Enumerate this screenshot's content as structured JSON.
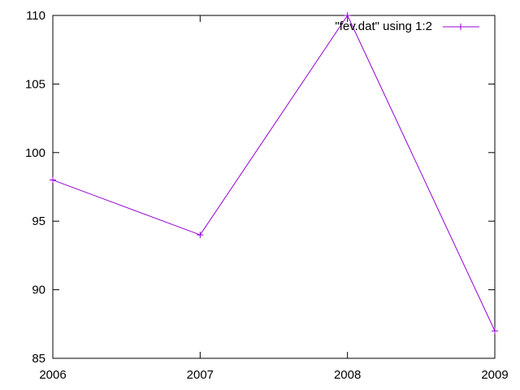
{
  "chart_data": {
    "type": "line",
    "title": "",
    "xlabel": "",
    "ylabel": "",
    "x": [
      2006,
      2007,
      2008,
      2009
    ],
    "xlim": [
      2006,
      2009
    ],
    "ylim": [
      85,
      110
    ],
    "x_ticks": [
      "2006",
      "2007",
      "2008",
      "2009"
    ],
    "y_ticks": [
      "85",
      "90",
      "95",
      "100",
      "105",
      "110"
    ],
    "grid": false,
    "legend_position": "top-right",
    "series": [
      {
        "name": "\"fev.dat\" using 1:2",
        "color": "#9400d3",
        "marker": "plus",
        "values": [
          98,
          94,
          110,
          87
        ]
      }
    ]
  }
}
